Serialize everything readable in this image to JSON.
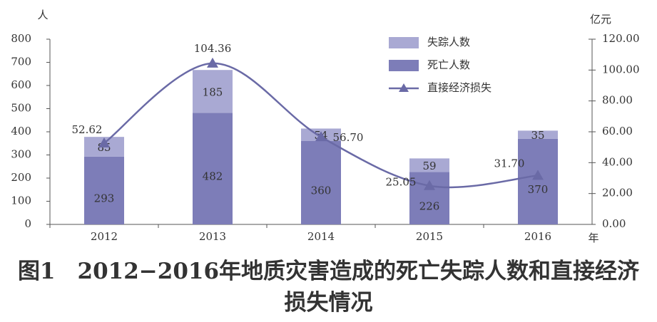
{
  "chart_data": {
    "type": "bar-line",
    "caption": "图1　2012−2016年地质灾害造成的死亡失踪人数和直接经济损失情况",
    "y_label": "人",
    "y2_label": "亿元",
    "x_label": "年",
    "categories": [
      "2012",
      "2013",
      "2014",
      "2015",
      "2016"
    ],
    "series": [
      {
        "name": "死亡人数",
        "color": "#7d7db8",
        "values": [
          293,
          482,
          360,
          226,
          370
        ]
      },
      {
        "name": "失踪人数",
        "color": "#a9a9d3",
        "values": [
          85,
          185,
          54,
          59,
          35
        ]
      },
      {
        "name": "直接经济损失",
        "color": "#6a6aa6",
        "axis": "y2",
        "values": [
          52.62,
          104.36,
          56.7,
          25.05,
          31.7
        ],
        "value_labels": [
          "52.62",
          "104.36",
          "56.70",
          "25.05",
          "31.70"
        ]
      }
    ],
    "ylim": [
      0,
      800
    ],
    "yticks": [
      0,
      100,
      200,
      300,
      400,
      500,
      600,
      700,
      800
    ],
    "y2lim": [
      0,
      120
    ],
    "y2ticks": [
      {
        "value": 0,
        "label": "0.00"
      },
      {
        "value": 20,
        "label": "20.00"
      },
      {
        "value": 40,
        "label": "40.00"
      },
      {
        "value": 60,
        "label": "60.00"
      },
      {
        "value": 80,
        "label": "80.00"
      },
      {
        "value": 100,
        "label": "100.00"
      },
      {
        "value": 120,
        "label": "120.00"
      }
    ]
  }
}
